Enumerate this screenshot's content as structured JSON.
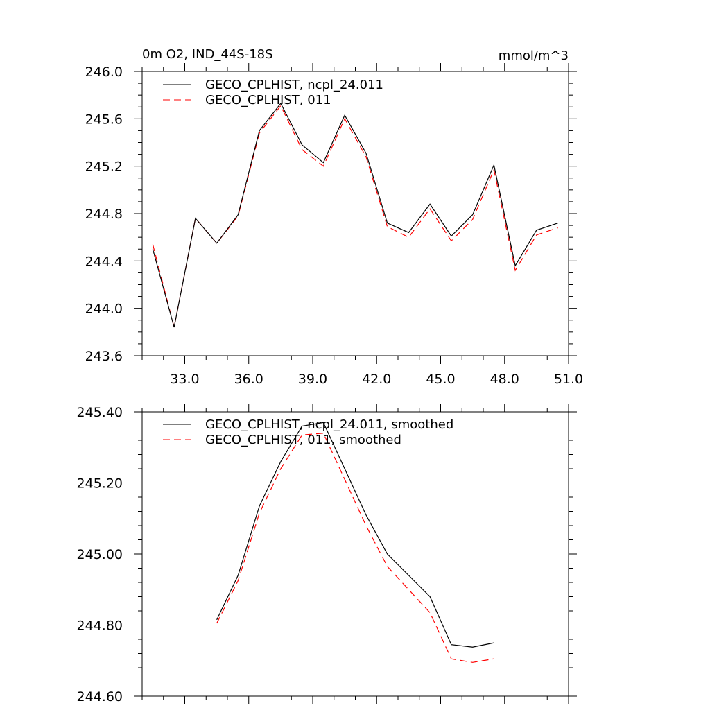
{
  "chart_data": [
    {
      "type": "line",
      "title_left": "0m O2, IND_44S-18S",
      "title_right": "mmol/m^3",
      "xlim": [
        31.0,
        51.0
      ],
      "ylim": [
        243.6,
        246.0
      ],
      "x_ticks": [
        33.0,
        36.0,
        39.0,
        42.0,
        45.0,
        48.0,
        51.0
      ],
      "x_tick_labels": [
        "33.0",
        "36.0",
        "39.0",
        "42.0",
        "45.0",
        "48.0",
        "51.0"
      ],
      "y_ticks": [
        243.6,
        244.0,
        244.4,
        244.8,
        245.2,
        245.6,
        246.0
      ],
      "y_tick_labels": [
        "243.6",
        "244.0",
        "244.4",
        "244.8",
        "245.2",
        "245.6",
        "246.0"
      ],
      "x": [
        31.5,
        32.5,
        33.5,
        34.5,
        35.5,
        36.5,
        37.5,
        38.5,
        39.5,
        40.5,
        41.5,
        42.5,
        43.5,
        44.5,
        45.5,
        46.5,
        47.5,
        48.5,
        49.5,
        50.5
      ],
      "series": [
        {
          "name": "GECO_CPLHIST, ncpl_24.011",
          "color": "#000000",
          "dash": "solid",
          "values": [
            244.5,
            243.84,
            244.76,
            244.55,
            244.79,
            245.5,
            245.73,
            245.38,
            245.23,
            245.63,
            245.31,
            244.72,
            244.64,
            244.88,
            244.61,
            244.79,
            245.21,
            244.36,
            244.66,
            244.72
          ]
        },
        {
          "name": "GECO_CPLHIST, 011",
          "color": "#ff0000",
          "dash": "dashed",
          "values": [
            244.54,
            243.84,
            244.76,
            244.55,
            244.78,
            245.48,
            245.71,
            245.34,
            245.2,
            245.6,
            245.28,
            244.69,
            244.6,
            244.84,
            244.57,
            244.75,
            245.17,
            244.32,
            244.62,
            244.68
          ]
        }
      ]
    },
    {
      "type": "line",
      "xlim": [
        31.0,
        51.0
      ],
      "ylim": [
        244.6,
        245.4
      ],
      "x_ticks": [
        33.0,
        36.0,
        39.0,
        42.0,
        45.0,
        48.0,
        51.0
      ],
      "y_ticks": [
        244.6,
        244.8,
        245.0,
        245.2,
        245.4
      ],
      "y_tick_labels": [
        "244.60",
        "244.80",
        "245.00",
        "245.20",
        "245.40"
      ],
      "x": [
        34.5,
        35.5,
        36.5,
        37.5,
        38.5,
        39.5,
        40.5,
        41.5,
        42.5,
        43.5,
        44.5,
        45.5,
        46.5,
        47.5
      ],
      "series": [
        {
          "name": "GECO_CPLHIST, ncpl_24.011, smoothed",
          "color": "#000000",
          "dash": "solid",
          "values": [
            244.815,
            244.94,
            245.135,
            245.26,
            245.36,
            245.37,
            245.24,
            245.11,
            245.0,
            244.94,
            244.88,
            244.745,
            244.738,
            244.75
          ]
        },
        {
          "name": "GECO_CPLHIST, 011, smoothed",
          "color": "#ff0000",
          "dash": "dashed",
          "values": [
            244.805,
            244.925,
            245.115,
            245.24,
            245.335,
            245.34,
            245.21,
            245.08,
            244.965,
            244.9,
            244.835,
            244.705,
            244.695,
            244.705
          ]
        }
      ]
    }
  ]
}
